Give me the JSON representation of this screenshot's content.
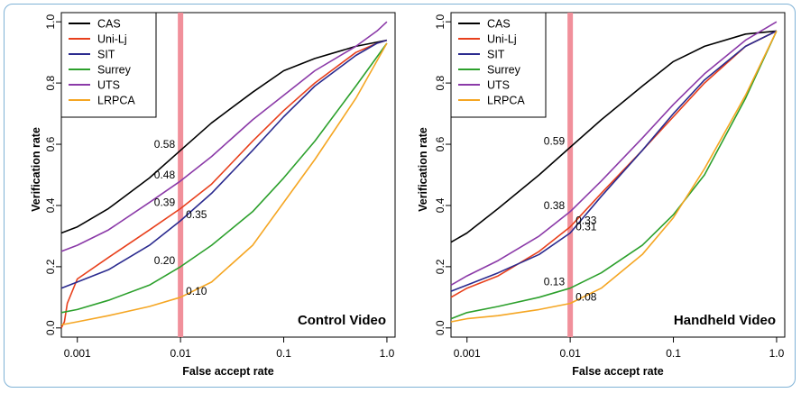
{
  "chart_data": [
    {
      "type": "line",
      "title": "Control Video",
      "xlabel": "False accept rate",
      "ylabel": "Verification rate",
      "x_scale": "log",
      "xlim": [
        0.0007,
        1.2
      ],
      "ylim": [
        -0.03,
        1.03
      ],
      "x_ticks": [
        0.001,
        0.01,
        0.1,
        1.0
      ],
      "x_tick_labels": [
        "0.001",
        "0.01",
        "0.1",
        "1.0"
      ],
      "y_ticks": [
        0.0,
        0.2,
        0.4,
        0.6,
        0.8,
        1.0
      ],
      "y_tick_labels": [
        "0.0",
        "0.2",
        "0.4",
        "0.6",
        "0.8",
        "1.0"
      ],
      "legend_position": "top-left",
      "highlight": {
        "x": 0.01,
        "color": "#f08a96"
      },
      "series": [
        {
          "name": "CAS",
          "color": "#000000",
          "x": [
            0.0007,
            0.001,
            0.002,
            0.005,
            0.01,
            0.02,
            0.05,
            0.1,
            0.2,
            0.5,
            1.0
          ],
          "values": [
            0.31,
            0.33,
            0.39,
            0.49,
            0.58,
            0.67,
            0.77,
            0.84,
            0.88,
            0.92,
            0.94
          ]
        },
        {
          "name": "Uni-Lj",
          "color": "#e8401c",
          "x": [
            0.0007,
            0.00075,
            0.0008,
            0.001,
            0.002,
            0.005,
            0.01,
            0.02,
            0.05,
            0.1,
            0.2,
            0.5,
            0.8,
            1.0
          ],
          "values": [
            0.0,
            0.02,
            0.08,
            0.16,
            0.23,
            0.32,
            0.39,
            0.47,
            0.61,
            0.71,
            0.8,
            0.9,
            0.93,
            0.94
          ]
        },
        {
          "name": "SIT",
          "color": "#2b2b8f",
          "x": [
            0.0007,
            0.001,
            0.002,
            0.005,
            0.01,
            0.02,
            0.05,
            0.1,
            0.2,
            0.5,
            0.8,
            1.0
          ],
          "values": [
            0.13,
            0.15,
            0.19,
            0.27,
            0.35,
            0.44,
            0.58,
            0.69,
            0.79,
            0.89,
            0.93,
            0.94
          ]
        },
        {
          "name": "Surrey",
          "color": "#2ca02c",
          "x": [
            0.0007,
            0.001,
            0.002,
            0.005,
            0.01,
            0.02,
            0.05,
            0.1,
            0.2,
            0.5,
            1.0
          ],
          "values": [
            0.05,
            0.06,
            0.09,
            0.14,
            0.2,
            0.27,
            0.38,
            0.49,
            0.61,
            0.79,
            0.93
          ]
        },
        {
          "name": "UTS",
          "color": "#8b3aa8",
          "x": [
            0.0007,
            0.001,
            0.002,
            0.005,
            0.01,
            0.02,
            0.05,
            0.1,
            0.2,
            0.5,
            0.8,
            1.0
          ],
          "values": [
            0.25,
            0.27,
            0.32,
            0.41,
            0.48,
            0.56,
            0.68,
            0.76,
            0.84,
            0.92,
            0.97,
            1.0
          ]
        },
        {
          "name": "LRPCA",
          "color": "#f5a623",
          "x": [
            0.0007,
            0.001,
            0.002,
            0.005,
            0.01,
            0.02,
            0.05,
            0.1,
            0.2,
            0.5,
            1.0
          ],
          "values": [
            0.01,
            0.02,
            0.04,
            0.07,
            0.1,
            0.15,
            0.27,
            0.41,
            0.55,
            0.75,
            0.93
          ]
        }
      ],
      "annotations": [
        {
          "text": "0.58",
          "x": 0.01,
          "y": 0.58,
          "side": "left"
        },
        {
          "text": "0.48",
          "x": 0.01,
          "y": 0.48,
          "side": "left"
        },
        {
          "text": "0.39",
          "x": 0.01,
          "y": 0.39,
          "side": "left"
        },
        {
          "text": "0.35",
          "x": 0.01,
          "y": 0.35,
          "side": "right"
        },
        {
          "text": "0.20",
          "x": 0.01,
          "y": 0.2,
          "side": "left"
        },
        {
          "text": "0.10",
          "x": 0.01,
          "y": 0.1,
          "side": "right"
        }
      ]
    },
    {
      "type": "line",
      "title": "Handheld Video",
      "xlabel": "False accept rate",
      "ylabel": "Verification rate",
      "x_scale": "log",
      "xlim": [
        0.0007,
        1.2
      ],
      "ylim": [
        -0.03,
        1.03
      ],
      "x_ticks": [
        0.001,
        0.01,
        0.1,
        1.0
      ],
      "x_tick_labels": [
        "0.001",
        "0.01",
        "0.1",
        "1.0"
      ],
      "y_ticks": [
        0.0,
        0.2,
        0.4,
        0.6,
        0.8,
        1.0
      ],
      "y_tick_labels": [
        "0.0",
        "0.2",
        "0.4",
        "0.6",
        "0.8",
        "1.0"
      ],
      "legend_position": "top-left",
      "highlight": {
        "x": 0.01,
        "color": "#f08a96"
      },
      "series": [
        {
          "name": "CAS",
          "color": "#000000",
          "x": [
            0.0007,
            0.001,
            0.002,
            0.005,
            0.01,
            0.02,
            0.05,
            0.1,
            0.2,
            0.5,
            1.0
          ],
          "values": [
            0.28,
            0.31,
            0.39,
            0.5,
            0.59,
            0.68,
            0.79,
            0.87,
            0.92,
            0.96,
            0.97
          ]
        },
        {
          "name": "Uni-Lj",
          "color": "#e8401c",
          "x": [
            0.0007,
            0.001,
            0.002,
            0.005,
            0.01,
            0.02,
            0.05,
            0.1,
            0.2,
            0.5,
            1.0
          ],
          "values": [
            0.1,
            0.13,
            0.17,
            0.25,
            0.33,
            0.44,
            0.58,
            0.69,
            0.8,
            0.92,
            0.97
          ]
        },
        {
          "name": "SIT",
          "color": "#2b2b8f",
          "x": [
            0.0007,
            0.001,
            0.002,
            0.005,
            0.01,
            0.02,
            0.05,
            0.1,
            0.2,
            0.5,
            1.0
          ],
          "values": [
            0.12,
            0.14,
            0.18,
            0.24,
            0.31,
            0.43,
            0.58,
            0.7,
            0.81,
            0.92,
            0.97
          ]
        },
        {
          "name": "Surrey",
          "color": "#2ca02c",
          "x": [
            0.0007,
            0.001,
            0.002,
            0.005,
            0.01,
            0.02,
            0.05,
            0.1,
            0.2,
            0.5,
            1.0
          ],
          "values": [
            0.03,
            0.05,
            0.07,
            0.1,
            0.13,
            0.18,
            0.27,
            0.37,
            0.5,
            0.75,
            0.97
          ]
        },
        {
          "name": "UTS",
          "color": "#8b3aa8",
          "x": [
            0.0007,
            0.001,
            0.002,
            0.005,
            0.01,
            0.02,
            0.05,
            0.1,
            0.2,
            0.5,
            1.0
          ],
          "values": [
            0.14,
            0.17,
            0.22,
            0.3,
            0.38,
            0.48,
            0.62,
            0.73,
            0.83,
            0.94,
            1.0
          ]
        },
        {
          "name": "LRPCA",
          "color": "#f5a623",
          "x": [
            0.0007,
            0.001,
            0.002,
            0.005,
            0.01,
            0.02,
            0.05,
            0.1,
            0.2,
            0.5,
            1.0
          ],
          "values": [
            0.02,
            0.03,
            0.04,
            0.06,
            0.08,
            0.13,
            0.24,
            0.36,
            0.52,
            0.76,
            0.97
          ]
        }
      ],
      "annotations": [
        {
          "text": "0.59",
          "x": 0.01,
          "y": 0.59,
          "side": "left"
        },
        {
          "text": "0.38",
          "x": 0.01,
          "y": 0.38,
          "side": "left"
        },
        {
          "text": "0.33",
          "x": 0.01,
          "y": 0.33,
          "side": "right"
        },
        {
          "text": "0.31",
          "x": 0.01,
          "y": 0.31,
          "side": "right"
        },
        {
          "text": "0.13",
          "x": 0.01,
          "y": 0.13,
          "side": "left"
        },
        {
          "text": "0.08",
          "x": 0.01,
          "y": 0.08,
          "side": "right"
        }
      ]
    }
  ]
}
